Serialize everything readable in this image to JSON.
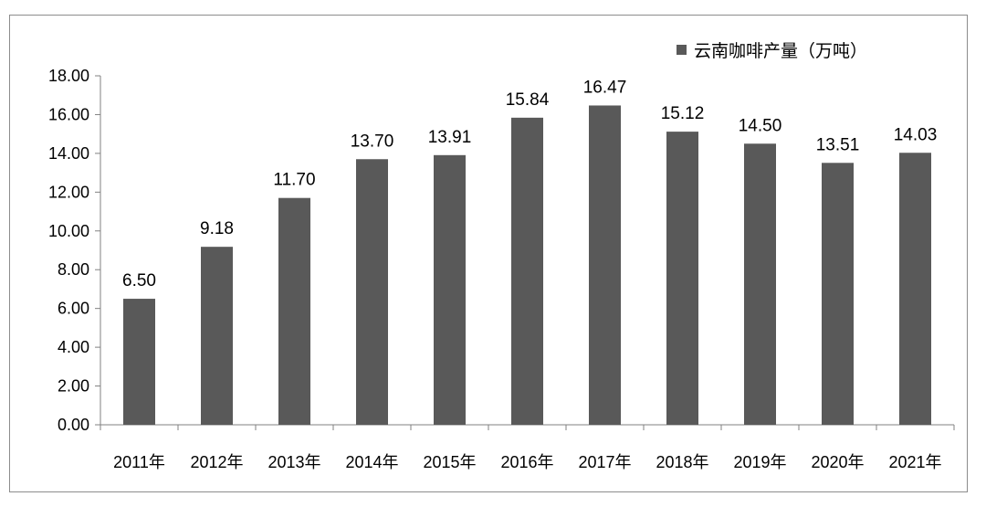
{
  "chart_data": {
    "type": "bar",
    "categories": [
      "2011年",
      "2012年",
      "2013年",
      "2014年",
      "2015年",
      "2016年",
      "2017年",
      "2018年",
      "2019年",
      "2020年",
      "2021年"
    ],
    "series": [
      {
        "name": "云南咖啡产量（万吨）",
        "values": [
          6.5,
          9.18,
          11.7,
          13.7,
          13.91,
          15.84,
          16.47,
          15.12,
          14.5,
          13.51,
          14.03
        ],
        "value_labels": [
          "6.50",
          "9.18",
          "11.70",
          "13.70",
          "13.91",
          "15.84",
          "16.47",
          "15.12",
          "14.50",
          "13.51",
          "14.03"
        ],
        "color": "#595959"
      }
    ],
    "y_ticks": [
      "0.00",
      "2.00",
      "4.00",
      "6.00",
      "8.00",
      "10.00",
      "12.00",
      "14.00",
      "16.00",
      "18.00"
    ],
    "ylim": [
      0,
      18
    ],
    "grid": false,
    "legend_position": "top-right"
  }
}
